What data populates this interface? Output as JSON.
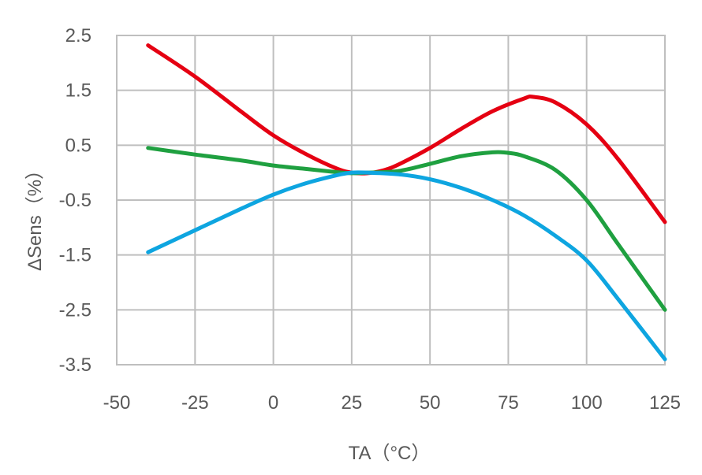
{
  "chart_data": {
    "type": "line",
    "xlabel": "TA（°C）",
    "ylabel": "ΔSens（%）",
    "xlim": [
      -50,
      125
    ],
    "ylim": [
      -3.5,
      2.5
    ],
    "x_ticks": [
      "-50",
      "-25",
      "0",
      "25",
      "50",
      "75",
      "100",
      "125"
    ],
    "y_ticks": [
      "2.5",
      "1.5",
      "0.5",
      "-0.5",
      "-1.5",
      "-2.5",
      "-3.5"
    ],
    "grid": true,
    "legend": "none",
    "series": [
      {
        "color": "#e50012",
        "points": [
          [
            -40,
            2.32
          ],
          [
            -25,
            1.75
          ],
          [
            -10,
            1.1
          ],
          [
            0,
            0.68
          ],
          [
            10,
            0.35
          ],
          [
            20,
            0.08
          ],
          [
            25,
            0.0
          ],
          [
            30,
            -0.01
          ],
          [
            35,
            0.04
          ],
          [
            40,
            0.15
          ],
          [
            50,
            0.45
          ],
          [
            60,
            0.8
          ],
          [
            70,
            1.12
          ],
          [
            80,
            1.35
          ],
          [
            83,
            1.38
          ],
          [
            90,
            1.28
          ],
          [
            100,
            0.88
          ],
          [
            110,
            0.25
          ],
          [
            125,
            -0.9
          ]
        ]
      },
      {
        "color": "#1fa040",
        "points": [
          [
            -40,
            0.45
          ],
          [
            -25,
            0.33
          ],
          [
            -10,
            0.22
          ],
          [
            0,
            0.13
          ],
          [
            10,
            0.07
          ],
          [
            20,
            0.01
          ],
          [
            25,
            -0.01
          ],
          [
            30,
            0.0
          ],
          [
            40,
            0.03
          ],
          [
            50,
            0.16
          ],
          [
            60,
            0.3
          ],
          [
            70,
            0.37
          ],
          [
            75,
            0.36
          ],
          [
            80,
            0.3
          ],
          [
            90,
            0.05
          ],
          [
            100,
            -0.5
          ],
          [
            110,
            -1.3
          ],
          [
            125,
            -2.5
          ]
        ]
      },
      {
        "color": "#0ea5e0",
        "points": [
          [
            -40,
            -1.45
          ],
          [
            -25,
            -1.05
          ],
          [
            -10,
            -0.65
          ],
          [
            0,
            -0.4
          ],
          [
            10,
            -0.2
          ],
          [
            20,
            -0.05
          ],
          [
            25,
            0.0
          ],
          [
            30,
            0.0
          ],
          [
            40,
            -0.03
          ],
          [
            50,
            -0.12
          ],
          [
            60,
            -0.28
          ],
          [
            70,
            -0.5
          ],
          [
            80,
            -0.78
          ],
          [
            90,
            -1.15
          ],
          [
            100,
            -1.6
          ],
          [
            110,
            -2.3
          ],
          [
            125,
            -3.4
          ]
        ]
      }
    ]
  }
}
